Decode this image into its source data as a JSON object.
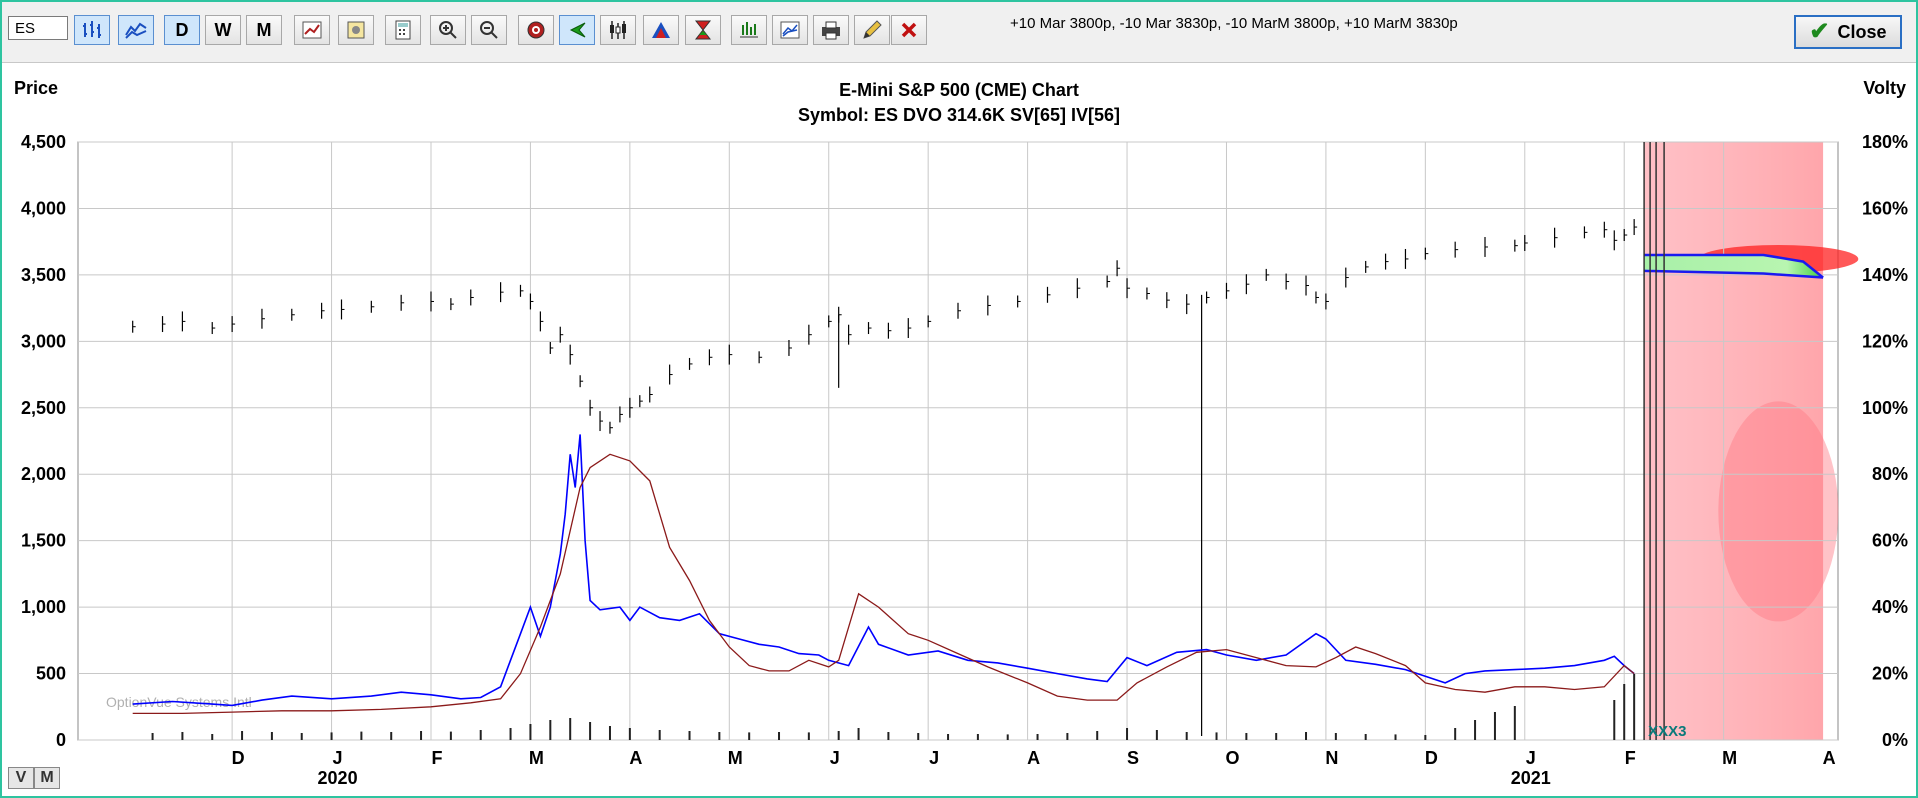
{
  "toolbar": {
    "symbol_value": "ES",
    "period_buttons": [
      "D",
      "W",
      "M"
    ],
    "spread_text": "+10 Mar 3800p, -10 Mar 3830p, -10 MarM 3800p, +10 MarM 3830p",
    "close_label": "Close"
  },
  "footer": {
    "v_label": "V",
    "m_label": "M"
  },
  "chart_data": {
    "type": "line",
    "title": "E-Mini S&P 500 (CME) Chart",
    "subtitle": "Symbol: ES  DVO 314.6K  SV[65]  IV[56]",
    "ylabel_left": "Price",
    "ylabel_right": "Volty",
    "ylim_left": [
      0,
      4500
    ],
    "ylim_right": [
      0,
      180
    ],
    "yticks_left": [
      "0",
      "500",
      "1,000",
      "1,500",
      "2,000",
      "2,500",
      "3,000",
      "3,500",
      "4,000",
      "4,500"
    ],
    "yticks_right": [
      "0%",
      "20%",
      "40%",
      "60%",
      "80%",
      "100%",
      "120%",
      "140%",
      "160%",
      "180%"
    ],
    "xticks": [
      {
        "label": "D",
        "m": 1
      },
      {
        "label": "J",
        "m": 2
      },
      {
        "label": "F",
        "m": 3
      },
      {
        "label": "M",
        "m": 4
      },
      {
        "label": "A",
        "m": 5
      },
      {
        "label": "M",
        "m": 6
      },
      {
        "label": "J",
        "m": 7
      },
      {
        "label": "J",
        "m": 8
      },
      {
        "label": "A",
        "m": 9
      },
      {
        "label": "S",
        "m": 10
      },
      {
        "label": "O",
        "m": 11
      },
      {
        "label": "N",
        "m": 12
      },
      {
        "label": "D",
        "m": 13
      },
      {
        "label": "J",
        "m": 14
      },
      {
        "label": "F",
        "m": 15
      },
      {
        "label": "M",
        "m": 16
      },
      {
        "label": "A",
        "m": 17
      }
    ],
    "year_labels": [
      {
        "label": "2020",
        "m": 2
      },
      {
        "label": "2021",
        "m": 14
      }
    ],
    "watermark": "OptionVue Systems Intl",
    "future_marker": "XXX3",
    "grid": true,
    "series": [
      {
        "color": "#000000",
        "style": "ohlc",
        "points": [
          [
            0,
            3110
          ],
          [
            0.3,
            3130
          ],
          [
            0.5,
            3150
          ],
          [
            0.8,
            3100
          ],
          [
            1.0,
            3130
          ],
          [
            1.3,
            3170
          ],
          [
            1.6,
            3200
          ],
          [
            1.9,
            3230
          ],
          [
            2.1,
            3240
          ],
          [
            2.4,
            3260
          ],
          [
            2.7,
            3290
          ],
          [
            3.0,
            3300
          ],
          [
            3.2,
            3280
          ],
          [
            3.4,
            3330
          ],
          [
            3.7,
            3370
          ],
          [
            3.9,
            3380
          ],
          [
            4.0,
            3300
          ],
          [
            4.1,
            3150
          ],
          [
            4.2,
            2950
          ],
          [
            4.3,
            3050
          ],
          [
            4.4,
            2900
          ],
          [
            4.5,
            2700
          ],
          [
            4.6,
            2500
          ],
          [
            4.7,
            2400
          ],
          [
            4.8,
            2350
          ],
          [
            4.9,
            2450
          ],
          [
            5.0,
            2500
          ],
          [
            5.1,
            2550
          ],
          [
            5.2,
            2600
          ],
          [
            5.4,
            2750
          ],
          [
            5.6,
            2830
          ],
          [
            5.8,
            2880
          ],
          [
            6.0,
            2900
          ],
          [
            6.3,
            2880
          ],
          [
            6.6,
            2950
          ],
          [
            6.8,
            3050
          ],
          [
            7.0,
            3150
          ],
          [
            7.1,
            3200
          ],
          [
            7.2,
            3050
          ],
          [
            7.4,
            3100
          ],
          [
            7.6,
            3080
          ],
          [
            7.8,
            3100
          ],
          [
            8.0,
            3150
          ],
          [
            8.3,
            3230
          ],
          [
            8.6,
            3270
          ],
          [
            8.9,
            3300
          ],
          [
            9.2,
            3350
          ],
          [
            9.5,
            3400
          ],
          [
            9.8,
            3450
          ],
          [
            9.9,
            3550
          ],
          [
            10.0,
            3400
          ],
          [
            10.2,
            3360
          ],
          [
            10.4,
            3310
          ],
          [
            10.6,
            3280
          ],
          [
            10.8,
            3330
          ],
          [
            11.0,
            3380
          ],
          [
            11.2,
            3430
          ],
          [
            11.4,
            3500
          ],
          [
            11.6,
            3450
          ],
          [
            11.8,
            3420
          ],
          [
            11.9,
            3330
          ],
          [
            12.0,
            3300
          ],
          [
            12.2,
            3480
          ],
          [
            12.4,
            3560
          ],
          [
            12.6,
            3600
          ],
          [
            12.8,
            3620
          ],
          [
            13.0,
            3660
          ],
          [
            13.3,
            3690
          ],
          [
            13.6,
            3710
          ],
          [
            13.9,
            3720
          ],
          [
            14.0,
            3740
          ],
          [
            14.3,
            3780
          ],
          [
            14.6,
            3820
          ],
          [
            14.8,
            3840
          ],
          [
            14.9,
            3760
          ],
          [
            15.0,
            3800
          ],
          [
            15.1,
            3860
          ]
        ]
      },
      {
        "color": "#0000ff",
        "style": "line",
        "points": [
          [
            0,
            270
          ],
          [
            0.4,
            290
          ],
          [
            0.8,
            270
          ],
          [
            1.0,
            260
          ],
          [
            1.3,
            300
          ],
          [
            1.6,
            330
          ],
          [
            2.0,
            310
          ],
          [
            2.4,
            330
          ],
          [
            2.7,
            360
          ],
          [
            3.0,
            340
          ],
          [
            3.3,
            310
          ],
          [
            3.5,
            320
          ],
          [
            3.7,
            400
          ],
          [
            3.8,
            600
          ],
          [
            3.9,
            800
          ],
          [
            4.0,
            1000
          ],
          [
            4.1,
            780
          ],
          [
            4.2,
            1000
          ],
          [
            4.3,
            1400
          ],
          [
            4.35,
            1700
          ],
          [
            4.4,
            2150
          ],
          [
            4.45,
            1900
          ],
          [
            4.5,
            2300
          ],
          [
            4.55,
            1500
          ],
          [
            4.6,
            1050
          ],
          [
            4.7,
            980
          ],
          [
            4.9,
            1000
          ],
          [
            5.0,
            900
          ],
          [
            5.1,
            1000
          ],
          [
            5.3,
            920
          ],
          [
            5.5,
            900
          ],
          [
            5.7,
            950
          ],
          [
            5.9,
            800
          ],
          [
            6.1,
            760
          ],
          [
            6.3,
            720
          ],
          [
            6.5,
            700
          ],
          [
            6.7,
            650
          ],
          [
            6.9,
            640
          ],
          [
            7.0,
            600
          ],
          [
            7.2,
            560
          ],
          [
            7.4,
            850
          ],
          [
            7.5,
            720
          ],
          [
            7.8,
            640
          ],
          [
            8.1,
            670
          ],
          [
            8.4,
            600
          ],
          [
            8.7,
            580
          ],
          [
            9.0,
            540
          ],
          [
            9.3,
            500
          ],
          [
            9.6,
            460
          ],
          [
            9.8,
            440
          ],
          [
            10.0,
            620
          ],
          [
            10.2,
            560
          ],
          [
            10.5,
            660
          ],
          [
            10.8,
            680
          ],
          [
            11.0,
            640
          ],
          [
            11.3,
            600
          ],
          [
            11.6,
            640
          ],
          [
            11.9,
            800
          ],
          [
            12.0,
            760
          ],
          [
            12.2,
            600
          ],
          [
            12.5,
            570
          ],
          [
            12.8,
            530
          ],
          [
            13.0,
            480
          ],
          [
            13.2,
            430
          ],
          [
            13.4,
            500
          ],
          [
            13.6,
            520
          ],
          [
            13.9,
            530
          ],
          [
            14.2,
            540
          ],
          [
            14.5,
            560
          ],
          [
            14.8,
            600
          ],
          [
            14.9,
            630
          ],
          [
            15.0,
            560
          ],
          [
            15.1,
            500
          ]
        ]
      },
      {
        "color": "#8b1a1a",
        "style": "line",
        "points": [
          [
            0,
            200
          ],
          [
            0.5,
            200
          ],
          [
            1.0,
            210
          ],
          [
            1.5,
            220
          ],
          [
            2.0,
            220
          ],
          [
            2.5,
            230
          ],
          [
            3.0,
            250
          ],
          [
            3.4,
            280
          ],
          [
            3.7,
            310
          ],
          [
            3.9,
            500
          ],
          [
            4.1,
            850
          ],
          [
            4.3,
            1250
          ],
          [
            4.5,
            1900
          ],
          [
            4.6,
            2050
          ],
          [
            4.8,
            2150
          ],
          [
            5.0,
            2100
          ],
          [
            5.2,
            1950
          ],
          [
            5.4,
            1450
          ],
          [
            5.6,
            1200
          ],
          [
            5.8,
            900
          ],
          [
            6.0,
            700
          ],
          [
            6.2,
            560
          ],
          [
            6.4,
            520
          ],
          [
            6.6,
            520
          ],
          [
            6.8,
            600
          ],
          [
            7.0,
            550
          ],
          [
            7.1,
            600
          ],
          [
            7.3,
            1100
          ],
          [
            7.5,
            1000
          ],
          [
            7.8,
            800
          ],
          [
            8.0,
            750
          ],
          [
            8.3,
            650
          ],
          [
            8.6,
            550
          ],
          [
            9.0,
            430
          ],
          [
            9.3,
            330
          ],
          [
            9.6,
            300
          ],
          [
            9.9,
            300
          ],
          [
            10.1,
            430
          ],
          [
            10.4,
            550
          ],
          [
            10.7,
            660
          ],
          [
            11.0,
            680
          ],
          [
            11.3,
            620
          ],
          [
            11.6,
            560
          ],
          [
            11.9,
            550
          ],
          [
            12.1,
            620
          ],
          [
            12.3,
            700
          ],
          [
            12.5,
            650
          ],
          [
            12.8,
            560
          ],
          [
            13.0,
            430
          ],
          [
            13.3,
            380
          ],
          [
            13.6,
            360
          ],
          [
            13.9,
            400
          ],
          [
            14.2,
            400
          ],
          [
            14.5,
            380
          ],
          [
            14.8,
            400
          ],
          [
            15.0,
            560
          ],
          [
            15.1,
            500
          ]
        ]
      }
    ],
    "volume_bars": [
      [
        0.2,
        35
      ],
      [
        0.5,
        40
      ],
      [
        0.8,
        30
      ],
      [
        1.1,
        45
      ],
      [
        1.4,
        40
      ],
      [
        1.7,
        35
      ],
      [
        2.0,
        38
      ],
      [
        2.3,
        42
      ],
      [
        2.6,
        40
      ],
      [
        2.9,
        45
      ],
      [
        3.2,
        42
      ],
      [
        3.5,
        50
      ],
      [
        3.8,
        60
      ],
      [
        4.0,
        80
      ],
      [
        4.2,
        100
      ],
      [
        4.4,
        110
      ],
      [
        4.6,
        90
      ],
      [
        4.8,
        70
      ],
      [
        5.0,
        60
      ],
      [
        5.3,
        50
      ],
      [
        5.6,
        45
      ],
      [
        5.9,
        40
      ],
      [
        6.2,
        38
      ],
      [
        6.5,
        40
      ],
      [
        6.8,
        38
      ],
      [
        7.1,
        45
      ],
      [
        7.3,
        60
      ],
      [
        7.6,
        40
      ],
      [
        7.9,
        35
      ],
      [
        8.2,
        30
      ],
      [
        8.5,
        30
      ],
      [
        8.8,
        28
      ],
      [
        9.1,
        30
      ],
      [
        9.4,
        35
      ],
      [
        9.7,
        45
      ],
      [
        10.0,
        60
      ],
      [
        10.3,
        50
      ],
      [
        10.6,
        40
      ],
      [
        10.9,
        38
      ],
      [
        11.2,
        35
      ],
      [
        11.5,
        35
      ],
      [
        11.8,
        40
      ],
      [
        12.1,
        35
      ],
      [
        12.4,
        30
      ],
      [
        12.7,
        28
      ],
      [
        13.0,
        25
      ],
      [
        13.3,
        60
      ],
      [
        13.5,
        100
      ],
      [
        13.7,
        140
      ],
      [
        13.9,
        170
      ],
      [
        14.9,
        200
      ],
      [
        15.0,
        280
      ],
      [
        15.1,
        330
      ]
    ]
  }
}
